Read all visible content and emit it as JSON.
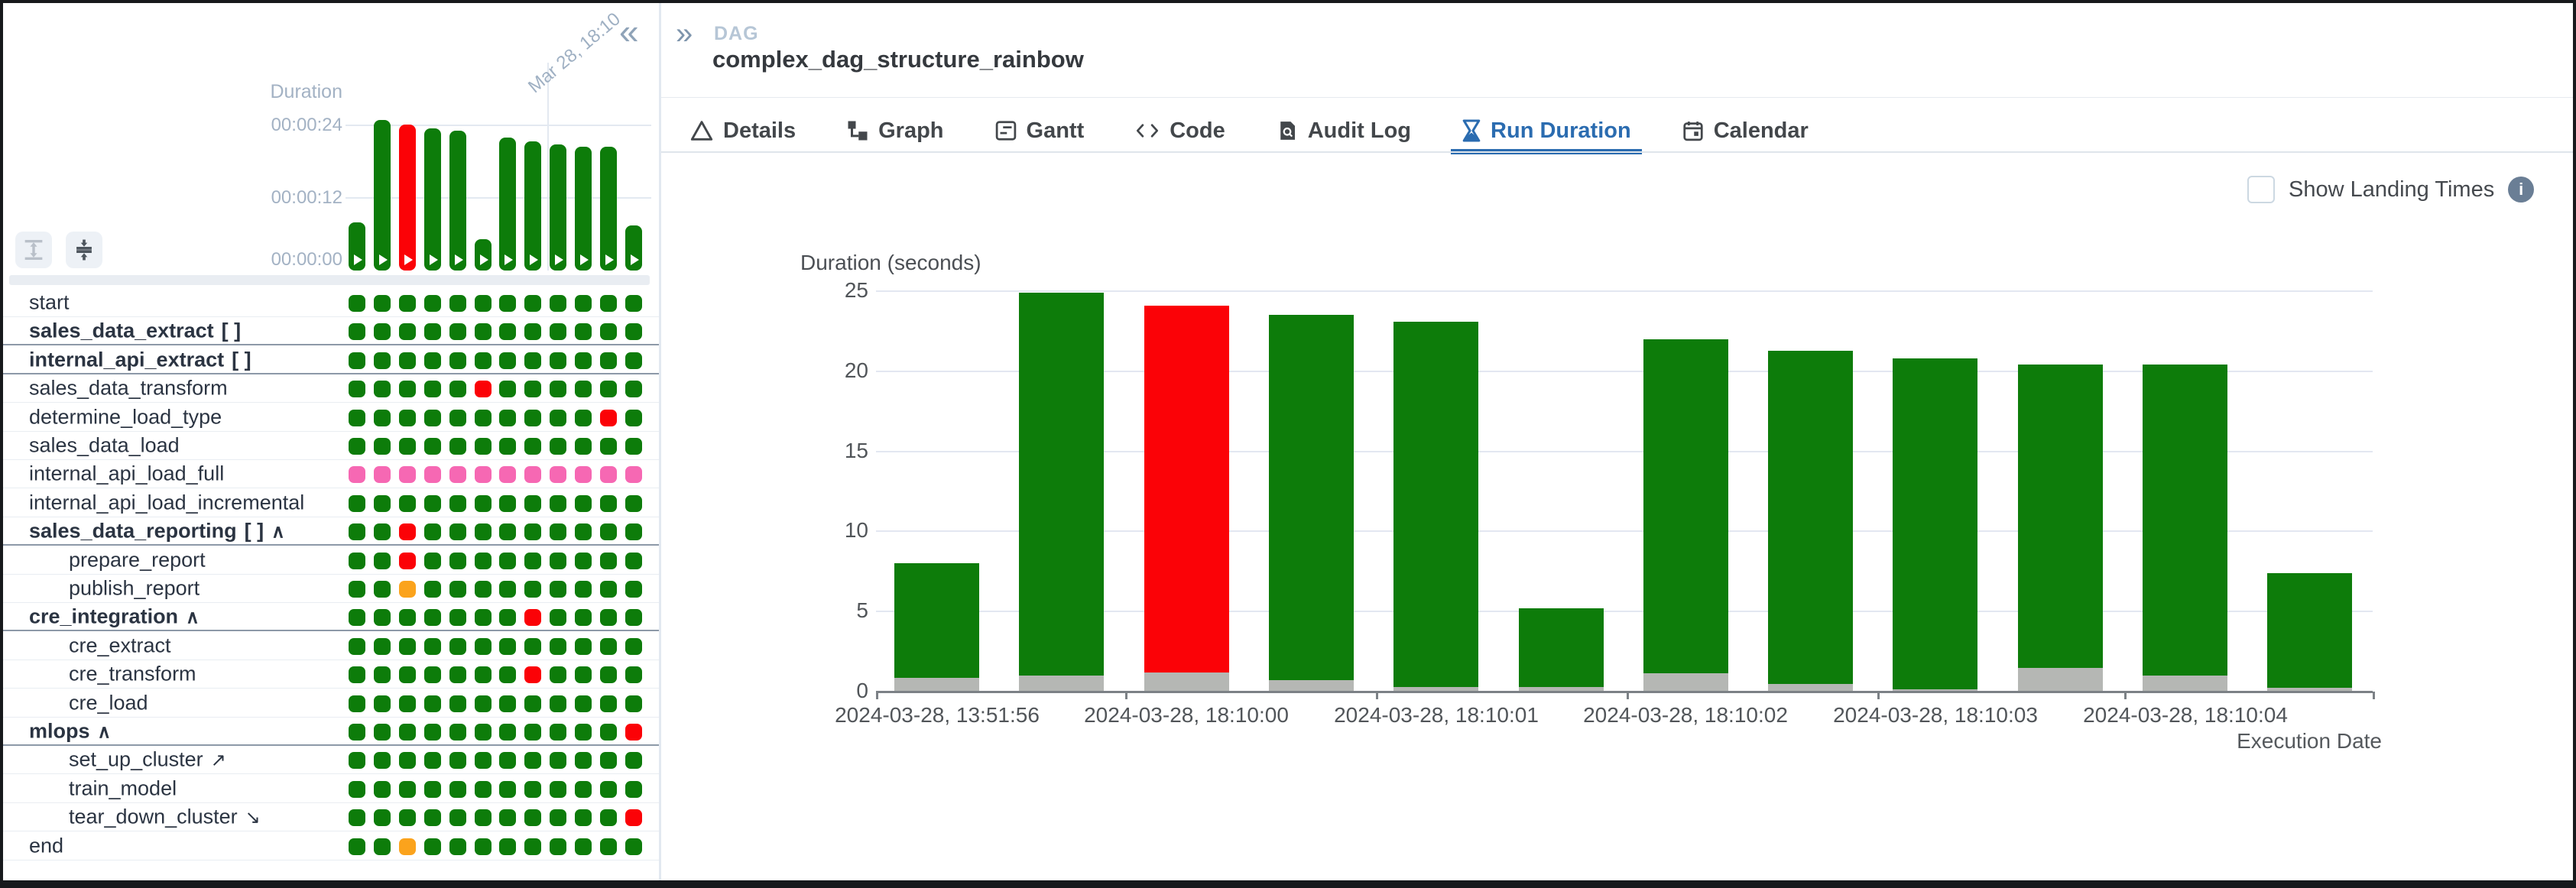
{
  "left_panel": {
    "collapse_button": "«",
    "mini_chart": {
      "ylabel": "Duration",
      "yticks": [
        "00:00:24",
        "00:00:12",
        "00:00:00"
      ],
      "date_annotation": "Mar 28, 18:10"
    },
    "grid": {
      "columns": 12,
      "tasks": [
        {
          "label": "start",
          "indent": 0,
          "group": false,
          "mapped": "",
          "trail": "",
          "states": "SSSSSSSSSSSS"
        },
        {
          "label": "sales_data_extract",
          "indent": 0,
          "group": true,
          "mapped": "[ ]",
          "trail": "",
          "states": "SSSSSSSSSSSS"
        },
        {
          "label": "internal_api_extract",
          "indent": 0,
          "group": true,
          "mapped": "[ ]",
          "trail": "",
          "states": "SSSSSSSSSSSS"
        },
        {
          "label": "sales_data_transform",
          "indent": 0,
          "group": false,
          "mapped": "",
          "trail": "",
          "states": "SSSSSFSSSSSS"
        },
        {
          "label": "determine_load_type",
          "indent": 0,
          "group": false,
          "mapped": "",
          "trail": "",
          "states": "SSSSSSSSSSFS"
        },
        {
          "label": "sales_data_load",
          "indent": 0,
          "group": false,
          "mapped": "",
          "trail": "",
          "states": "SSSSSSSSSSSS"
        },
        {
          "label": "internal_api_load_full",
          "indent": 0,
          "group": false,
          "mapped": "",
          "trail": "",
          "states": "PPPPPPPPPPPP"
        },
        {
          "label": "internal_api_load_incremental",
          "indent": 0,
          "group": false,
          "mapped": "",
          "trail": "",
          "states": "SSSSSSSSSSSS"
        },
        {
          "label": "sales_data_reporting",
          "indent": 0,
          "group": true,
          "mapped": "[ ]",
          "trail": "caret-up",
          "states": "SSFSSSSSSSSS"
        },
        {
          "label": "prepare_report",
          "indent": 1,
          "group": false,
          "mapped": "",
          "trail": "",
          "states": "SSFSSSSSSSSS"
        },
        {
          "label": "publish_report",
          "indent": 1,
          "group": false,
          "mapped": "",
          "trail": "",
          "states": "SSUSSSSSSSSS"
        },
        {
          "label": "cre_integration",
          "indent": 0,
          "group": true,
          "mapped": "",
          "trail": "caret-up",
          "states": "SSSSSSSFSSSS"
        },
        {
          "label": "cre_extract",
          "indent": 1,
          "group": false,
          "mapped": "",
          "trail": "",
          "states": "SSSSSSSSSSSS"
        },
        {
          "label": "cre_transform",
          "indent": 1,
          "group": false,
          "mapped": "",
          "trail": "",
          "states": "SSSSSSSFSSSS"
        },
        {
          "label": "cre_load",
          "indent": 1,
          "group": false,
          "mapped": "",
          "trail": "",
          "states": "SSSSSSSSSSSS"
        },
        {
          "label": "mlops",
          "indent": 0,
          "group": true,
          "mapped": "",
          "trail": "caret-up",
          "states": "SSSSSSSSSSSF"
        },
        {
          "label": "set_up_cluster",
          "indent": 1,
          "group": false,
          "mapped": "",
          "trail": "arrow-ne",
          "states": "SSSSSSSSSSSS"
        },
        {
          "label": "train_model",
          "indent": 1,
          "group": false,
          "mapped": "",
          "trail": "",
          "states": "SSSSSSSSSSSS"
        },
        {
          "label": "tear_down_cluster",
          "indent": 1,
          "group": false,
          "mapped": "",
          "trail": "arrow-se",
          "states": "SSSSSSSSSSSF"
        },
        {
          "label": "end",
          "indent": 0,
          "group": false,
          "mapped": "",
          "trail": "",
          "states": "SSUSSSSSSSSS"
        }
      ]
    }
  },
  "header": {
    "breadcrumb_chevrons": "»",
    "breadcrumb": "DAG",
    "title": "complex_dag_structure_rainbow"
  },
  "tabs": [
    {
      "label": "Details",
      "icon": "warning-triangle-icon",
      "active": false
    },
    {
      "label": "Graph",
      "icon": "graph-icon",
      "active": false
    },
    {
      "label": "Gantt",
      "icon": "gantt-icon",
      "active": false
    },
    {
      "label": "Code",
      "icon": "code-icon",
      "active": false
    },
    {
      "label": "Audit Log",
      "icon": "audit-log-icon",
      "active": false
    },
    {
      "label": "Run Duration",
      "icon": "hourglass-icon",
      "active": true
    },
    {
      "label": "Calendar",
      "icon": "calendar-icon",
      "active": false
    }
  ],
  "landing_times": {
    "label": "Show Landing Times",
    "checked": false,
    "info_glyph": "i"
  },
  "chart_data": {
    "type": "bar",
    "title": "",
    "ylabel": "Duration (seconds)",
    "xlabel": "Execution Date",
    "ylim": [
      0,
      25
    ],
    "yticks": [
      0,
      5,
      10,
      15,
      20,
      25
    ],
    "grid": true,
    "legend": false,
    "x_tick_labels": [
      "2024-03-28, 13:51:56",
      "2024-03-28, 18:10:00",
      "2024-03-28, 18:10:01",
      "2024-03-28, 18:10:02",
      "2024-03-28, 18:10:03",
      "2024-03-28, 18:10:04"
    ],
    "runs": [
      {
        "total_seconds": 8.0,
        "queued_seconds": 0.85,
        "state": "success"
      },
      {
        "total_seconds": 24.9,
        "queued_seconds": 1.0,
        "state": "success"
      },
      {
        "total_seconds": 24.1,
        "queued_seconds": 1.2,
        "state": "failed"
      },
      {
        "total_seconds": 23.5,
        "queued_seconds": 0.7,
        "state": "success"
      },
      {
        "total_seconds": 23.1,
        "queued_seconds": 0.3,
        "state": "success"
      },
      {
        "total_seconds": 5.2,
        "queued_seconds": 0.28,
        "state": "success"
      },
      {
        "total_seconds": 22.0,
        "queued_seconds": 1.15,
        "state": "success"
      },
      {
        "total_seconds": 21.3,
        "queued_seconds": 0.5,
        "state": "success"
      },
      {
        "total_seconds": 20.8,
        "queued_seconds": 0.15,
        "state": "success"
      },
      {
        "total_seconds": 20.4,
        "queued_seconds": 1.5,
        "state": "success"
      },
      {
        "total_seconds": 20.4,
        "queued_seconds": 1.0,
        "state": "success"
      },
      {
        "total_seconds": 7.4,
        "queued_seconds": 0.25,
        "state": "success"
      }
    ]
  },
  "state_colors": {
    "success": "#0d7c0a",
    "failed": "#fb0207",
    "upstream_failed": "#fba31c",
    "skipped": "#f668b3",
    "queued": "#b5b7b4",
    "accent_blue": "#2b6cb0"
  }
}
